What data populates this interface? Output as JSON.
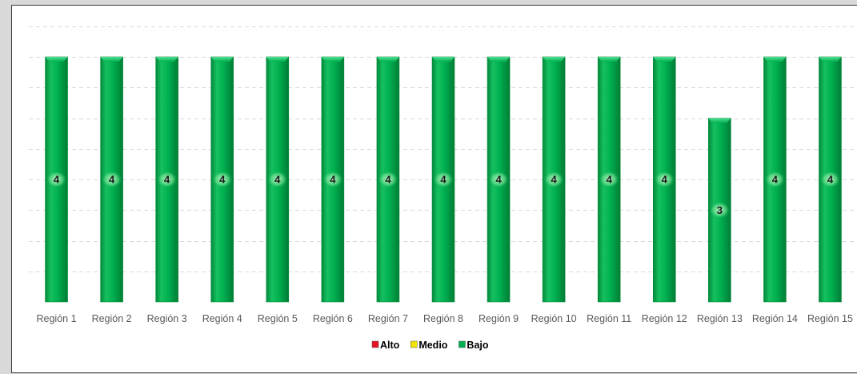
{
  "chart_data": {
    "type": "bar",
    "title": "",
    "xlabel": "",
    "ylabel": "",
    "categories": [
      "Región 1",
      "Región 2",
      "Región 3",
      "Región 4",
      "Región 5",
      "Región 6",
      "Región 7",
      "Región 8",
      "Región 9",
      "Región 10",
      "Región 11",
      "Región 12",
      "Región 13",
      "Región 14",
      "Región 15"
    ],
    "series": [
      {
        "name": "Alto",
        "color": "#e81123",
        "values": [
          0,
          0,
          0,
          0,
          0,
          0,
          0,
          0,
          0,
          0,
          0,
          0,
          0,
          0,
          0
        ]
      },
      {
        "name": "Medio",
        "color": "#f2e500",
        "values": [
          0,
          0,
          0,
          0,
          0,
          0,
          0,
          0,
          0,
          0,
          0,
          0,
          0,
          0,
          0
        ]
      },
      {
        "name": "Bajo",
        "color": "#00b050",
        "values": [
          4,
          4,
          4,
          4,
          4,
          4,
          4,
          4,
          4,
          4,
          4,
          4,
          3,
          4,
          4
        ]
      }
    ],
    "ylim": [
      0,
      4.5
    ],
    "grid": true,
    "show_y_axis": false,
    "legend_position": "bottom"
  },
  "colors": {
    "bar_main": "#00b050",
    "bar_light": "#33d67a",
    "bar_dark": "#008a3c",
    "grid": "#d9d9d9",
    "frame_border": "#3c3c3c"
  }
}
